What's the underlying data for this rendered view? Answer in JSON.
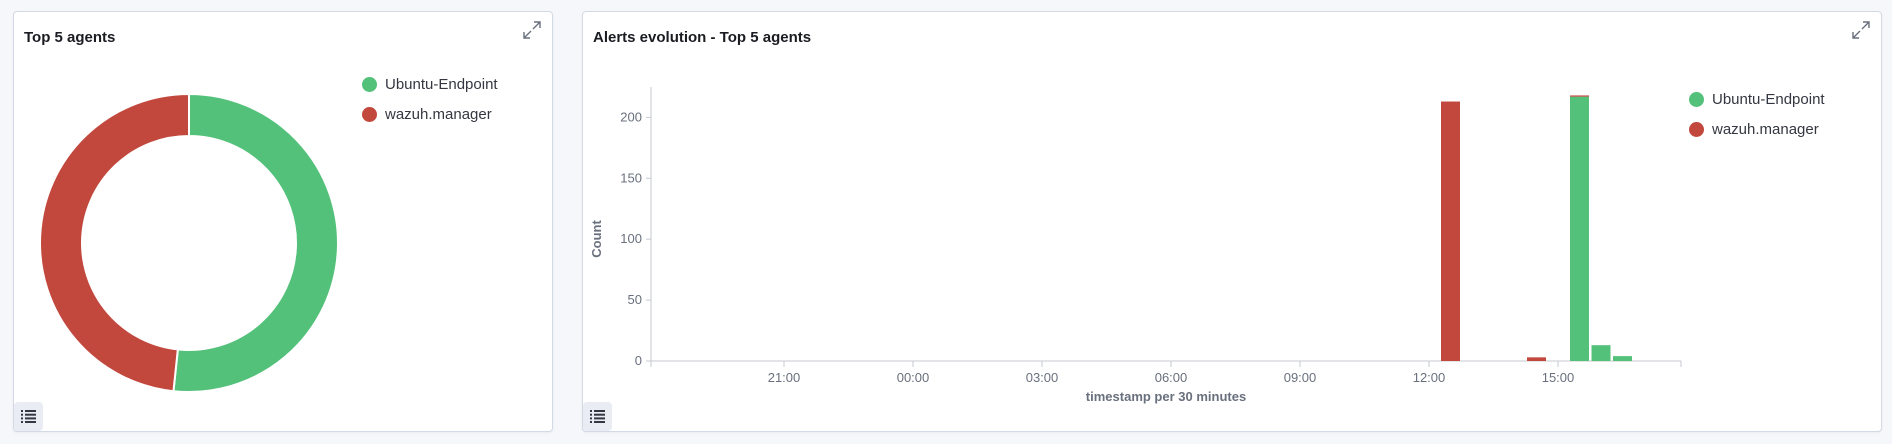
{
  "colors": {
    "ubuntu": "#54c17a",
    "wazuh": "#c2483d",
    "panel_border": "#d3dae6",
    "axis": "#c4c9d1",
    "tick_text": "#69707d"
  },
  "icons": {
    "expand": "expand-icon",
    "legend_toggle": "list-icon"
  },
  "panel_left": {
    "title": "Top 5 agents",
    "legend": [
      {
        "label": "Ubuntu-Endpoint",
        "color": "#54c17a"
      },
      {
        "label": "wazuh.manager",
        "color": "#c2483d"
      }
    ]
  },
  "panel_right": {
    "title": "Alerts evolution - Top 5 agents",
    "legend": [
      {
        "label": "Ubuntu-Endpoint",
        "color": "#54c17a"
      },
      {
        "label": "wazuh.manager",
        "color": "#c2483d"
      }
    ]
  },
  "chart_data": [
    {
      "type": "pie",
      "donut": true,
      "labels": [
        "Ubuntu-Endpoint",
        "wazuh.manager"
      ],
      "values": [
        233,
        218
      ],
      "legend_position": "top-right"
    },
    {
      "type": "bar",
      "stacked": true,
      "xlabel": "timestamp per 30 minutes",
      "ylabel": "Count",
      "x_ticks": [
        "21:00",
        "00:00",
        "03:00",
        "06:00",
        "09:00",
        "12:00",
        "15:00"
      ],
      "y_ticks": [
        0,
        50,
        100,
        150,
        200
      ],
      "ylim": [
        0,
        220
      ],
      "x": [
        "12:30",
        "14:30",
        "15:30",
        "16:00",
        "16:30"
      ],
      "series": [
        {
          "name": "Ubuntu-Endpoint",
          "values": [
            0,
            0,
            217,
            13,
            4
          ]
        },
        {
          "name": "wazuh.manager",
          "values": [
            213,
            3,
            1,
            0,
            0
          ]
        }
      ],
      "legend_position": "top-right",
      "grid": false
    }
  ]
}
